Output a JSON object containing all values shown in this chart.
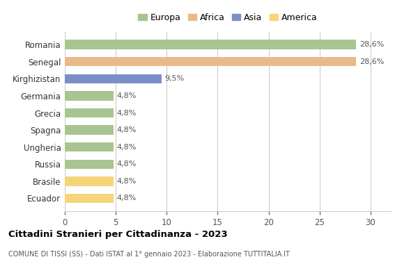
{
  "categories": [
    "Romania",
    "Senegal",
    "Kirghizistan",
    "Germania",
    "Grecia",
    "Spagna",
    "Ungheria",
    "Russia",
    "Brasile",
    "Ecuador"
  ],
  "values": [
    28.6,
    28.6,
    9.5,
    4.8,
    4.8,
    4.8,
    4.8,
    4.8,
    4.8,
    4.8
  ],
  "labels": [
    "28,6%",
    "28,6%",
    "9,5%",
    "4,8%",
    "4,8%",
    "4,8%",
    "4,8%",
    "4,8%",
    "4,8%",
    "4,8%"
  ],
  "bar_colors": [
    "#a8c490",
    "#e8b98a",
    "#7b8ec8",
    "#a8c490",
    "#a8c490",
    "#a8c490",
    "#a8c490",
    "#a8c490",
    "#f5d57a",
    "#f5d57a"
  ],
  "legend_labels": [
    "Europa",
    "Africa",
    "Asia",
    "America"
  ],
  "legend_colors": [
    "#a8c490",
    "#e8b98a",
    "#7b8ec8",
    "#f5d57a"
  ],
  "title": "Cittadini Stranieri per Cittadinanza - 2023",
  "subtitle": "COMUNE DI TISSI (SS) - Dati ISTAT al 1° gennaio 2023 - Elaborazione TUTTITALIA.IT",
  "xlim": [
    0,
    32
  ],
  "xticks": [
    0,
    5,
    10,
    15,
    20,
    25,
    30
  ],
  "background_color": "#ffffff",
  "grid_color": "#cccccc",
  "figsize": [
    6.0,
    3.8
  ],
  "dpi": 100
}
